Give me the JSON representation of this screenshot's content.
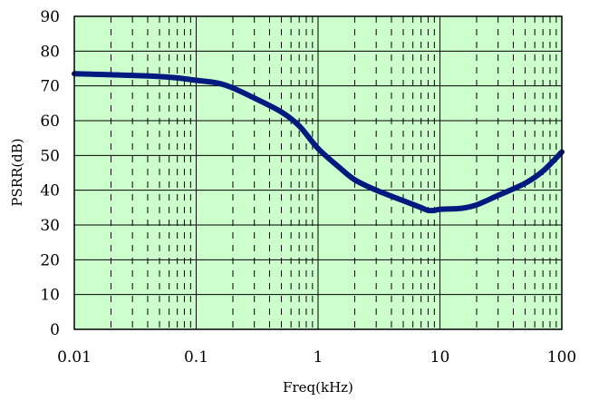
{
  "chart_data": {
    "type": "line",
    "xlabel": "Freq(kHz)",
    "ylabel": "PSRR(dB)",
    "x_scale": "log",
    "xlim": [
      0.01,
      100
    ],
    "ylim": [
      0,
      90
    ],
    "x_ticks": [
      0.01,
      0.1,
      1,
      10,
      100
    ],
    "x_tick_labels": [
      "0.01",
      "0.1",
      "1",
      "10",
      "100"
    ],
    "y_ticks": [
      0,
      10,
      20,
      30,
      40,
      50,
      60,
      70,
      80,
      90
    ],
    "y_tick_labels": [
      "0",
      "10",
      "20",
      "30",
      "40",
      "50",
      "60",
      "70",
      "80",
      "90"
    ],
    "grid": true,
    "minor_grid_style": "dashed",
    "legend": false,
    "colors": {
      "plot_background": "#ccffcc",
      "line": "#001a80",
      "grid": "#000000"
    },
    "series": [
      {
        "x": [
          0.01,
          0.02,
          0.03,
          0.05,
          0.07,
          0.1,
          0.15,
          0.2,
          0.3,
          0.5,
          0.7,
          1,
          1.5,
          2,
          3,
          5,
          7,
          8,
          9,
          10,
          15,
          20,
          30,
          50,
          70,
          100
        ],
        "y": [
          73.5,
          73.2,
          73.0,
          72.7,
          72.3,
          71.6,
          70.8,
          69.4,
          66.5,
          62.5,
          58.5,
          52.0,
          46.5,
          43.0,
          40.0,
          37.0,
          35.0,
          34.2,
          34.2,
          34.5,
          34.8,
          35.8,
          38.5,
          42.0,
          45.5,
          51.0
        ]
      }
    ]
  }
}
